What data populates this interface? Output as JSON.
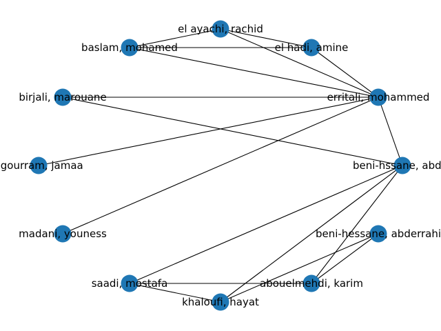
{
  "graph": {
    "node_color": "#1f77b4",
    "edge_color": "#000000",
    "nodes": [
      {
        "id": "el_ayachi",
        "label": "el ayachi, rachid"
      },
      {
        "id": "baslam",
        "label": "baslam, mohamed"
      },
      {
        "id": "el_hadi",
        "label": "el hadi, amine"
      },
      {
        "id": "birjali",
        "label": "birjali, marouane"
      },
      {
        "id": "erritali",
        "label": "erritali, mohammed"
      },
      {
        "id": "ngourram",
        "label": "ngourram, jamaa"
      },
      {
        "id": "beni_hssane",
        "label": "beni-hssane, abder"
      },
      {
        "id": "madani",
        "label": "madani, youness"
      },
      {
        "id": "beni_hessane",
        "label": "beni-hessane, abderrahi"
      },
      {
        "id": "saadi",
        "label": "saadi, mostafa"
      },
      {
        "id": "abouelmehdi",
        "label": "abouelmehdi, karim"
      },
      {
        "id": "khaloufi",
        "label": "khaloufi, hayat"
      }
    ],
    "edges": [
      [
        "el_ayachi",
        "baslam"
      ],
      [
        "el_ayachi",
        "el_hadi"
      ],
      [
        "el_ayachi",
        "erritali"
      ],
      [
        "baslam",
        "el_hadi"
      ],
      [
        "baslam",
        "erritali"
      ],
      [
        "el_hadi",
        "erritali"
      ],
      [
        "birjali",
        "erritali"
      ],
      [
        "birjali",
        "beni_hssane"
      ],
      [
        "ngourram",
        "erritali"
      ],
      [
        "madani",
        "erritali"
      ],
      [
        "erritali",
        "beni_hssane"
      ],
      [
        "beni_hssane",
        "saadi"
      ],
      [
        "beni_hssane",
        "khaloufi"
      ],
      [
        "beni_hssane",
        "abouelmehdi"
      ],
      [
        "beni_hessane",
        "abouelmehdi"
      ],
      [
        "beni_hessane",
        "khaloufi"
      ],
      [
        "saadi",
        "abouelmehdi"
      ],
      [
        "saadi",
        "khaloufi"
      ]
    ]
  }
}
